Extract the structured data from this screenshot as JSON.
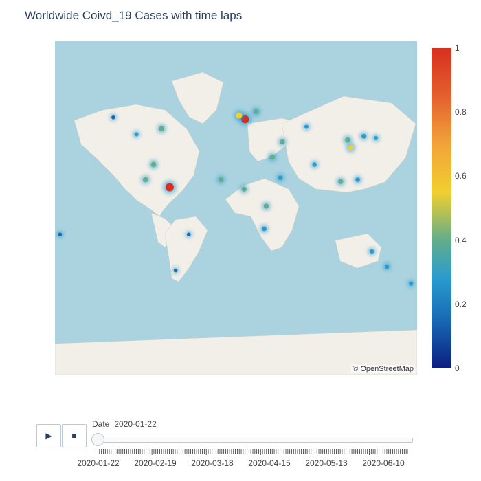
{
  "title": "Worldwide Coivd_19 Cases with time laps",
  "attribution": "© OpenStreetMap",
  "colorbar": {
    "ticks": [
      "0",
      "0.2",
      "0.4",
      "0.6",
      "0.8",
      "1"
    ],
    "colors": [
      "#0d1e7f",
      "#1769b3",
      "#2a9bcf",
      "#62ad8a",
      "#f0cf2f",
      "#f2a33a",
      "#e4602e",
      "#d72f1f"
    ]
  },
  "controls": {
    "play_icon": "play-icon",
    "stop_icon": "stop-icon",
    "slider_label": "Date=2020-01-22",
    "slider_fraction": 0,
    "tick_labels": [
      "2020-01-22",
      "2020-02-19",
      "2020-03-18",
      "2020-04-15",
      "2020-05-13",
      "2020-06-10"
    ]
  },
  "map_colors": {
    "water": "#aad3df",
    "land": "#f2efe9"
  },
  "chart_data": {
    "type": "heatmap",
    "title": "Worldwide Coivd_19 Cases with time laps",
    "color_range": [
      0,
      1
    ],
    "frame": "2020-01-22",
    "hotspots": [
      {
        "lon": -66,
        "lat": 10,
        "value": 1.0
      },
      {
        "lon": 9,
        "lat": 46,
        "value": 0.95
      },
      {
        "lon": 3,
        "lat": 48,
        "value": 0.6
      },
      {
        "lon": 20,
        "lat": 50,
        "value": 0.45
      },
      {
        "lon": 114,
        "lat": 31,
        "value": 0.5
      },
      {
        "lon": 111,
        "lat": 35,
        "value": 0.45
      },
      {
        "lon": -90,
        "lat": 14,
        "value": 0.45
      },
      {
        "lon": -82,
        "lat": 22,
        "value": 0.45
      },
      {
        "lon": -74,
        "lat": 41,
        "value": 0.45
      },
      {
        "lon": -15,
        "lat": 14,
        "value": 0.4
      },
      {
        "lon": 8,
        "lat": 9,
        "value": 0.4
      },
      {
        "lon": 36,
        "lat": 26,
        "value": 0.45
      },
      {
        "lon": 44,
        "lat": 15,
        "value": 0.35
      },
      {
        "lon": 46,
        "lat": 34,
        "value": 0.4
      },
      {
        "lon": 30,
        "lat": 0,
        "value": 0.4
      },
      {
        "lon": 28,
        "lat": -12,
        "value": 0.35
      },
      {
        "lon": 104,
        "lat": 13,
        "value": 0.4
      },
      {
        "lon": 135,
        "lat": -24,
        "value": 0.3
      },
      {
        "lon": 150,
        "lat": -32,
        "value": 0.3
      },
      {
        "lon": 174,
        "lat": -41,
        "value": 0.25
      },
      {
        "lon": -99,
        "lat": 38,
        "value": 0.25
      },
      {
        "lon": -122,
        "lat": 47,
        "value": 0.2
      },
      {
        "lon": -60,
        "lat": -34,
        "value": 0.2
      },
      {
        "lon": -47,
        "lat": -15,
        "value": 0.2
      },
      {
        "lon": 78,
        "lat": 22,
        "value": 0.3
      },
      {
        "lon": 70,
        "lat": 42,
        "value": 0.25
      },
      {
        "lon": 127,
        "lat": 37,
        "value": 0.35
      },
      {
        "lon": 139,
        "lat": 36,
        "value": 0.25
      },
      {
        "lon": 121,
        "lat": 14,
        "value": 0.35
      },
      {
        "lon": -175,
        "lat": -15,
        "value": 0.2
      }
    ]
  }
}
